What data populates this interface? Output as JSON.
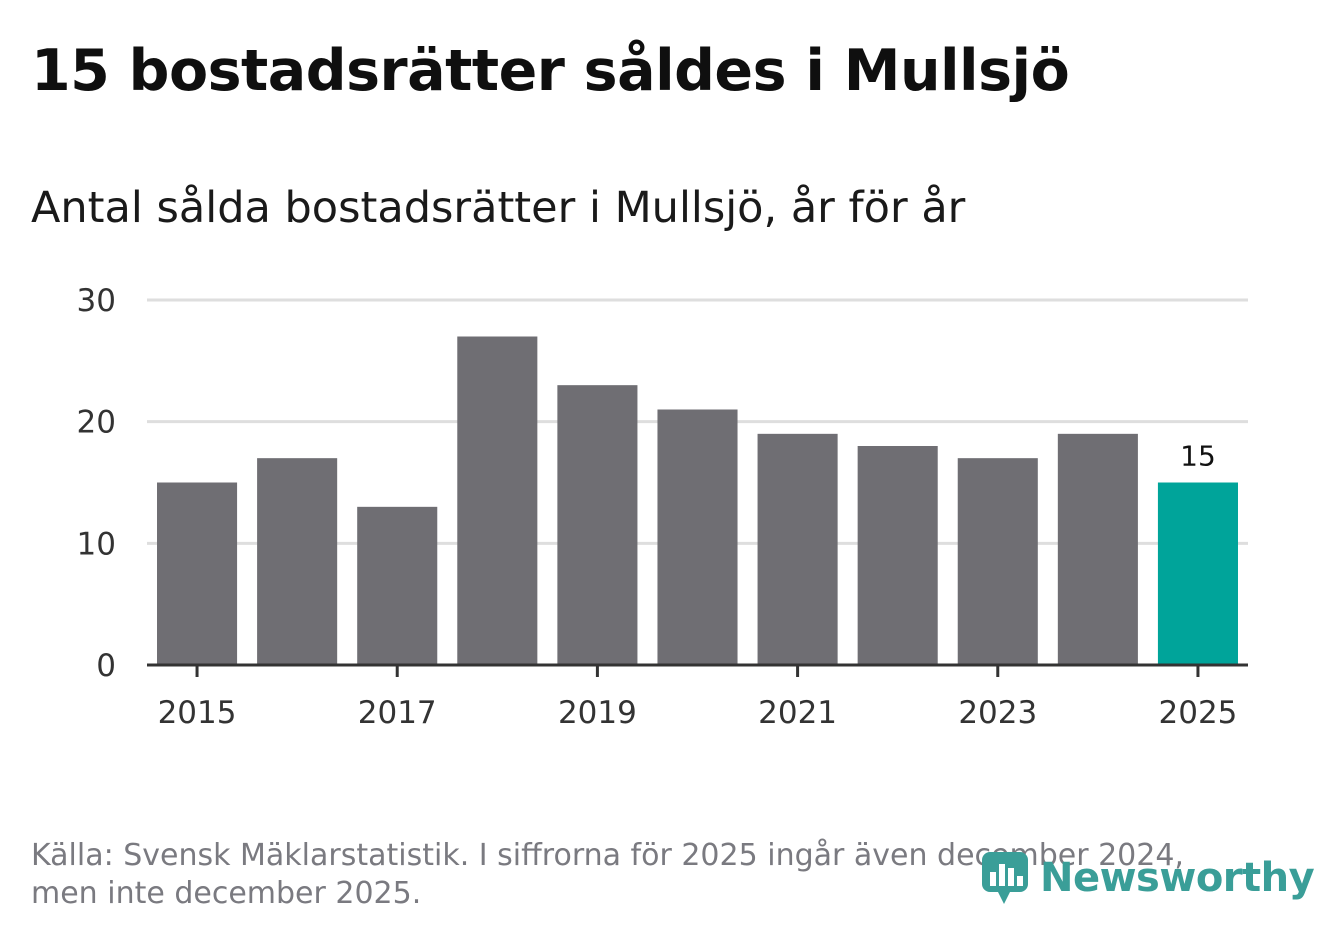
{
  "header": {
    "title": "15 bostadsrätter såldes i Mullsjö"
  },
  "chart_data": {
    "type": "bar",
    "title": "15 bostadsrätter såldes i Mullsjö",
    "subtitle": "Antal sålda bostadsrätter i Mullsjö, år för år",
    "categories": [
      "2015",
      "2016",
      "2017",
      "2018",
      "2019",
      "2020",
      "2021",
      "2022",
      "2023",
      "2024",
      "2025"
    ],
    "values": [
      15,
      17,
      13,
      27,
      23,
      21,
      19,
      18,
      17,
      19,
      15
    ],
    "x_tick_labels": [
      "2015",
      "2017",
      "2019",
      "2021",
      "2023",
      "2025"
    ],
    "y_ticks": [
      0,
      10,
      20,
      30
    ],
    "ylim": [
      0,
      30
    ],
    "grid": true,
    "highlight_index": 10,
    "highlight_label": "15",
    "colors": {
      "bar": "#6f6e73",
      "highlight": "#00a49a",
      "grid": "#dedede",
      "axis": "#333333",
      "tick_text": "#333333"
    }
  },
  "footer": {
    "source_line1": "Källa: Svensk Mäklarstatistik. I siffrorna för 2025 ingår även december 2024,",
    "source_line2": "men inte december 2025.",
    "brand": "Newsworthy",
    "brand_icon": "newsworthy-logo-icon"
  }
}
